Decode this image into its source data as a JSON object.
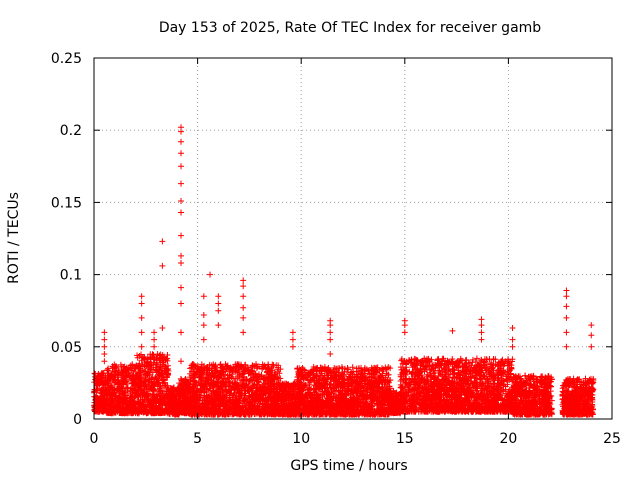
{
  "chart_data": {
    "type": "scatter",
    "title": "Day 153 of 2025, Rate Of TEC Index for receiver gamb",
    "xlabel": "GPS time / hours",
    "ylabel": "ROTI / TECUs",
    "xlim": [
      0,
      25
    ],
    "ylim": [
      0,
      0.25
    ],
    "xticks": [
      0,
      5,
      10,
      15,
      20,
      25
    ],
    "xtick_labels": [
      "0",
      "5",
      "10",
      "15",
      "20",
      "25"
    ],
    "yticks": [
      0,
      0.05,
      0.1,
      0.15,
      0.2,
      0.25
    ],
    "ytick_labels": [
      "0",
      "0.05",
      "0.1",
      "0.15",
      "0.2",
      "0.25"
    ],
    "grid": true,
    "marker": "+",
    "marker_color": "#ff0000",
    "series": [
      {
        "name": "ROTI",
        "bands": [
          {
            "x_start": 0.0,
            "x_end": 0.6,
            "low": 0.005,
            "high": 0.032
          },
          {
            "x_start": 0.6,
            "x_end": 2.0,
            "low": 0.004,
            "high": 0.038
          },
          {
            "x_start": 2.0,
            "x_end": 3.6,
            "low": 0.004,
            "high": 0.045
          },
          {
            "x_start": 3.6,
            "x_end": 4.1,
            "low": 0.003,
            "high": 0.022
          },
          {
            "x_start": 4.1,
            "x_end": 4.6,
            "low": 0.004,
            "high": 0.028
          },
          {
            "x_start": 4.6,
            "x_end": 9.0,
            "low": 0.003,
            "high": 0.038
          },
          {
            "x_start": 9.0,
            "x_end": 9.8,
            "low": 0.003,
            "high": 0.025
          },
          {
            "x_start": 9.8,
            "x_end": 14.3,
            "low": 0.003,
            "high": 0.036
          },
          {
            "x_start": 14.3,
            "x_end": 14.8,
            "low": 0.004,
            "high": 0.02
          },
          {
            "x_start": 14.8,
            "x_end": 20.2,
            "low": 0.005,
            "high": 0.042
          },
          {
            "x_start": 20.2,
            "x_end": 22.1,
            "low": 0.003,
            "high": 0.03
          },
          {
            "x_start": 22.6,
            "x_end": 24.1,
            "low": 0.003,
            "high": 0.028
          }
        ],
        "spikes": [
          {
            "x": 0.5,
            "values": [
              0.04,
              0.045,
              0.05,
              0.055,
              0.06
            ]
          },
          {
            "x": 2.3,
            "values": [
              0.05,
              0.06,
              0.07,
              0.08,
              0.085
            ]
          },
          {
            "x": 2.9,
            "values": [
              0.05,
              0.055,
              0.06
            ]
          },
          {
            "x": 3.3,
            "values": [
              0.063,
              0.106,
              0.123
            ]
          },
          {
            "x": 4.2,
            "values": [
              0.04,
              0.06,
              0.08,
              0.091,
              0.108,
              0.113,
              0.127,
              0.143,
              0.151,
              0.163,
              0.175,
              0.184,
              0.192,
              0.199,
              0.202
            ]
          },
          {
            "x": 5.3,
            "values": [
              0.055,
              0.065,
              0.072,
              0.085
            ]
          },
          {
            "x": 5.6,
            "values": [
              0.1
            ]
          },
          {
            "x": 6.0,
            "values": [
              0.065,
              0.075,
              0.08,
              0.085
            ]
          },
          {
            "x": 7.2,
            "values": [
              0.06,
              0.07,
              0.077,
              0.085,
              0.092,
              0.096
            ]
          },
          {
            "x": 9.6,
            "values": [
              0.05,
              0.055,
              0.06
            ]
          },
          {
            "x": 11.4,
            "values": [
              0.045,
              0.055,
              0.06,
              0.065,
              0.068
            ]
          },
          {
            "x": 15.0,
            "values": [
              0.06,
              0.065,
              0.068
            ]
          },
          {
            "x": 17.3,
            "values": [
              0.061
            ]
          },
          {
            "x": 18.7,
            "values": [
              0.055,
              0.06,
              0.065,
              0.069
            ]
          },
          {
            "x": 20.2,
            "values": [
              0.05,
              0.055,
              0.063
            ]
          },
          {
            "x": 22.8,
            "values": [
              0.05,
              0.06,
              0.07,
              0.078,
              0.085,
              0.089
            ]
          },
          {
            "x": 24.0,
            "values": [
              0.05,
              0.058,
              0.065
            ]
          }
        ]
      }
    ]
  }
}
